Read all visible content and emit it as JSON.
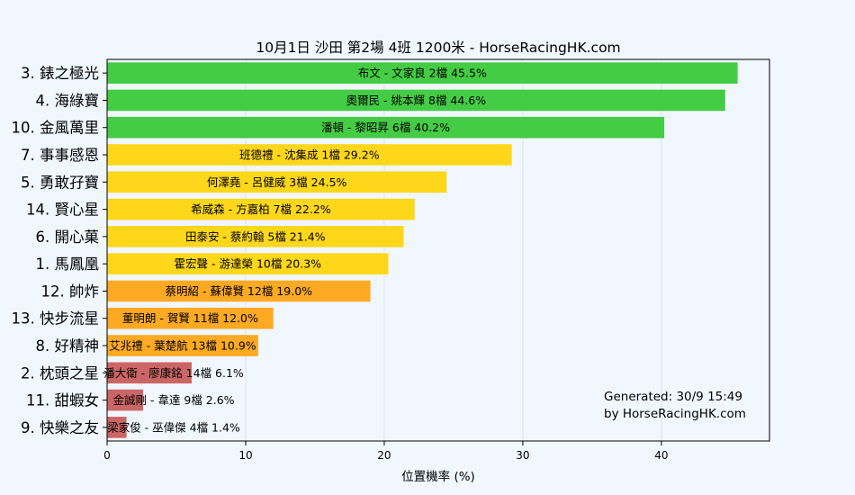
{
  "chart_data": {
    "type": "bar",
    "orientation": "horizontal",
    "title": "10月1日  沙田  第2場  4班  1200米 - HorseRacingHK.com",
    "xlabel": "位置機率 (%)",
    "ylabel": "",
    "xlim": [
      0,
      47.8
    ],
    "xticks": [
      0,
      10,
      20,
      30,
      40
    ],
    "grid": "vertical",
    "categories": [
      "3. 錶之極光",
      "4. 海綠寶",
      "10. 金風萬里",
      "7. 事事感恩",
      "5. 勇敢孖寶",
      "14. 賢心星",
      "6. 開心菓",
      "1. 馬鳳凰",
      "12. 帥炸",
      "13. 快步流星",
      "8. 好精神",
      "2. 枕頭之星",
      "11. 甜蝦女",
      "9. 快樂之友"
    ],
    "values": [
      45.5,
      44.6,
      40.2,
      29.2,
      24.5,
      22.2,
      21.4,
      20.3,
      19.0,
      12.0,
      10.9,
      6.1,
      2.6,
      1.4
    ],
    "bar_labels": [
      "布文 - 文家良 2檔  45.5%",
      "奧爾民 - 姚本輝 8檔  44.6%",
      "潘頓 - 黎昭昇 6檔  40.2%",
      "班德禮 - 沈集成 1檔  29.2%",
      "何澤堯 - 呂健威 3檔  24.5%",
      "希威森 - 方嘉柏 7檔  22.2%",
      "田泰安 - 蔡約翰 5檔  21.4%",
      "霍宏聲 - 游達榮 10檔  20.3%",
      "蔡明紹 - 蘇偉賢 12檔  19.0%",
      "董明朗 - 賀賢 11檔  12.0%",
      "艾兆禮 - 葉楚航 13檔  10.9%",
      "潘大衛 - 廖康銘 14檔  6.1%",
      "金誠剛 - 韋達 9檔  2.6%",
      "梁家俊 - 巫偉傑 4檔  1.4%"
    ],
    "colors": [
      "#44cc44",
      "#44cc44",
      "#44cc44",
      "#ffd71a",
      "#ffd71a",
      "#ffd71a",
      "#ffd71a",
      "#ffd71a",
      "#ffaa22",
      "#ffaa22",
      "#ffaa22",
      "#cc6666",
      "#cc6666",
      "#cc6666"
    ],
    "annotation": [
      "Generated: 30/9 15:49",
      "by HorseRacingHK.com"
    ]
  },
  "colors": {
    "background": "#f0f7ff",
    "plot_background": "#f0f7ff",
    "grid": "#dde3ea",
    "annotation": "#999999"
  }
}
